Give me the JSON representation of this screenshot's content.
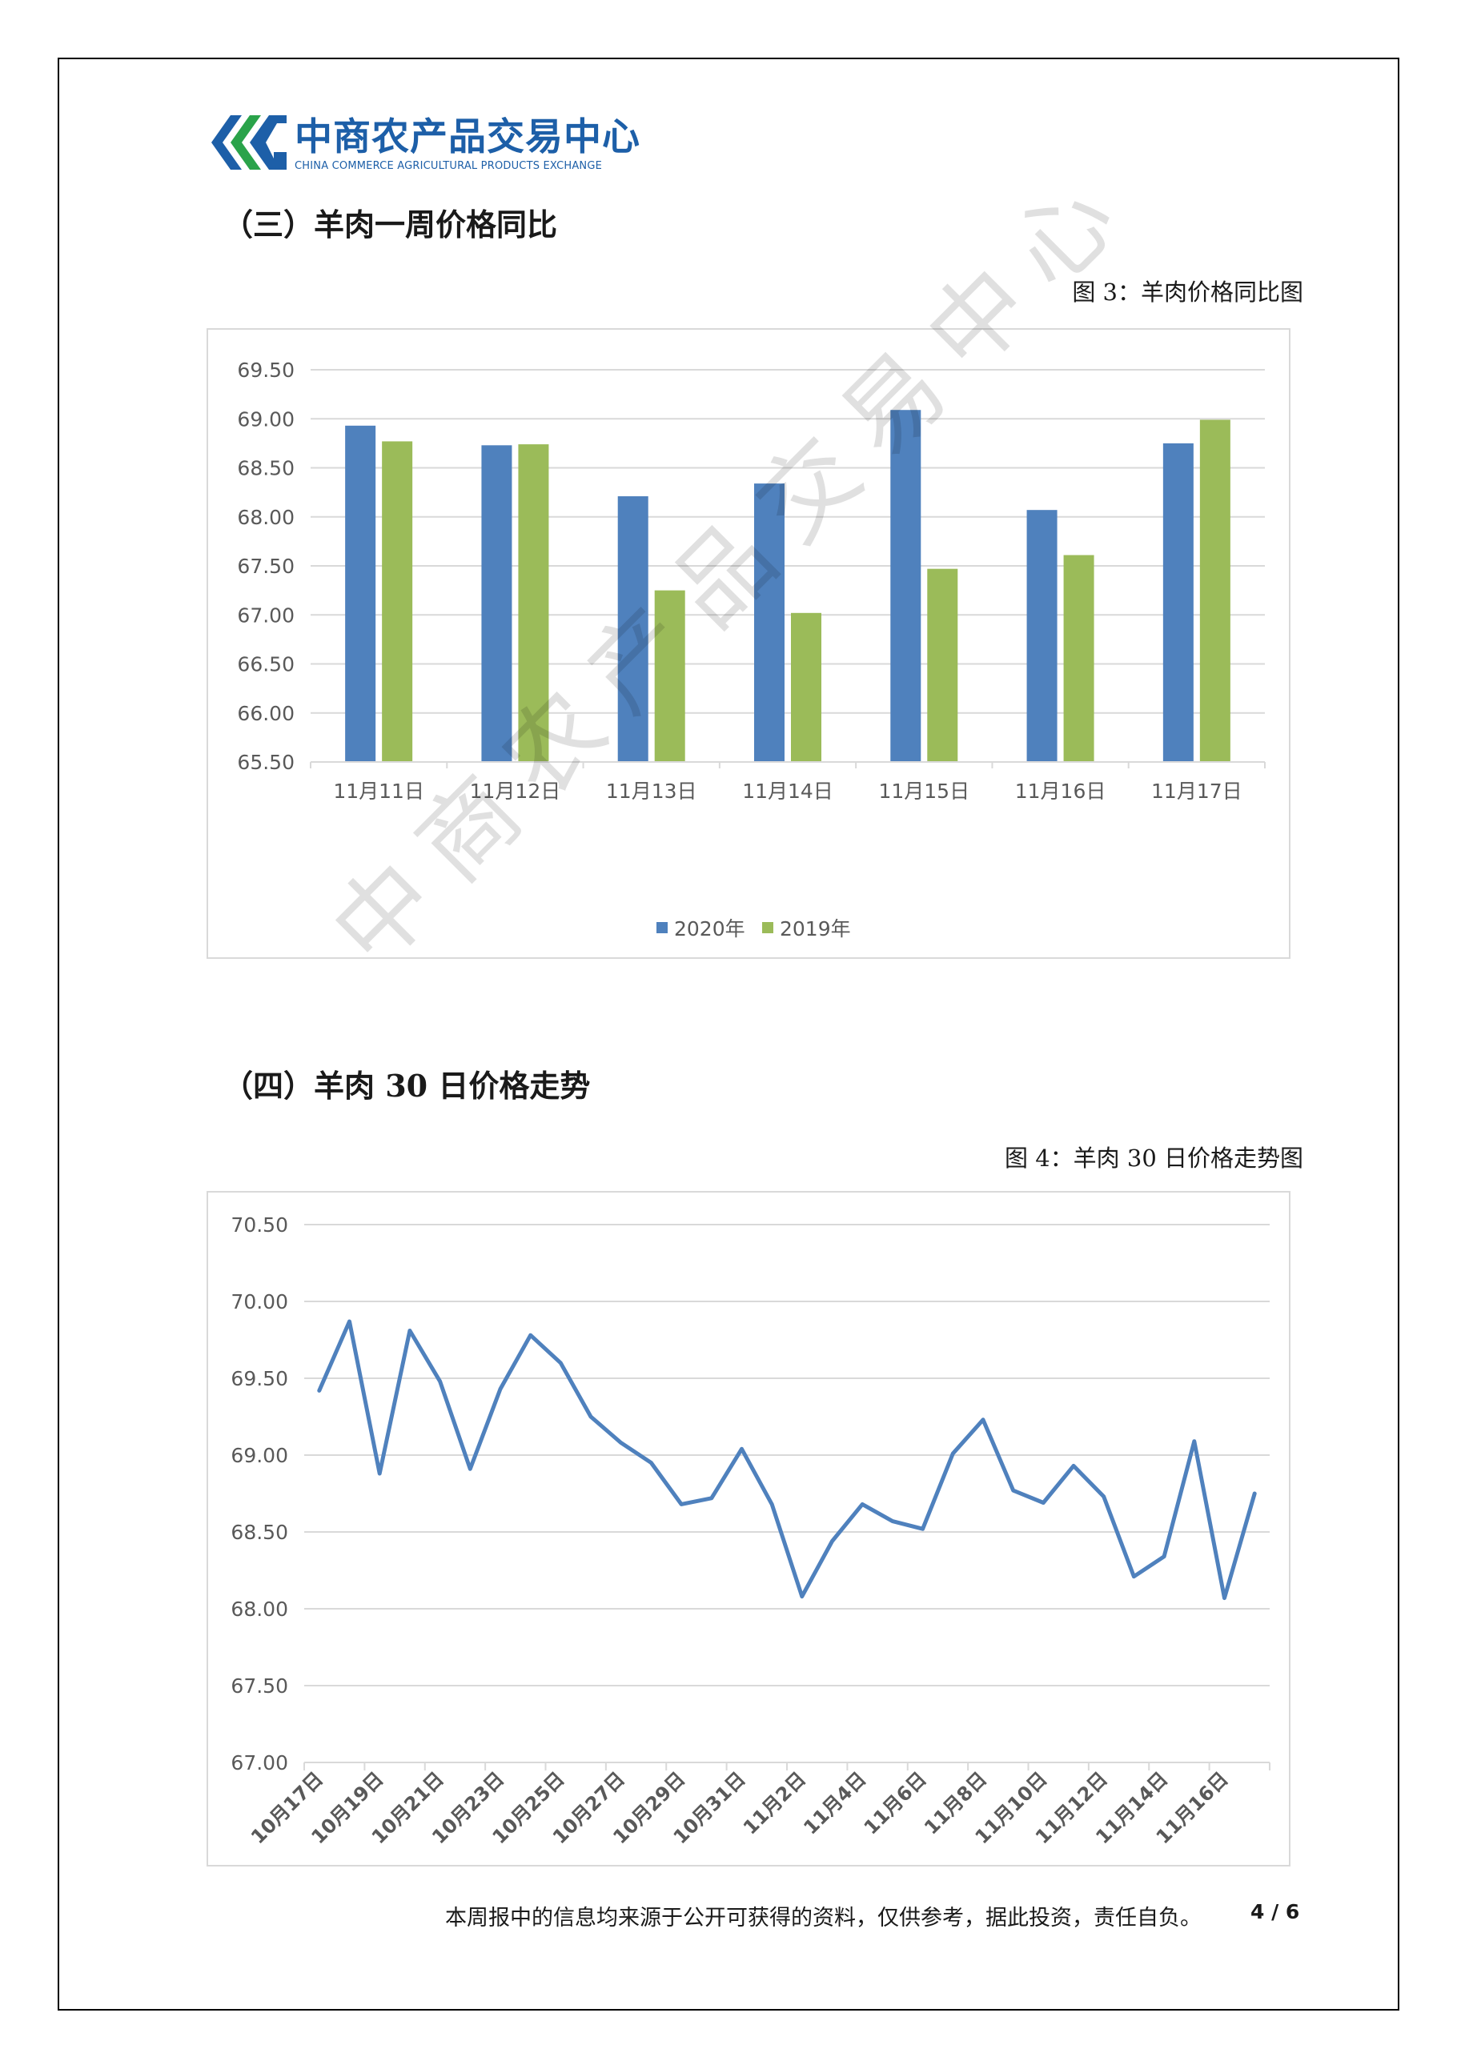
{
  "logo": {
    "cn": "中商农产品交易中心",
    "en": "CHINA COMMERCE AGRICULTURAL PRODUCTS EXCHANGE",
    "color": "#1d5fa8",
    "accent": "#2aa34a"
  },
  "section3": {
    "title": "（三）羊肉一周价格同比",
    "caption": "图 3：羊肉价格同比图"
  },
  "section4": {
    "title": "（四）羊肉 30 日价格走势",
    "caption": "图 4：羊肉 30 日价格走势图"
  },
  "watermark": "中商农产品交易中心",
  "footer": {
    "disclaimer": "本周报中的信息均来源于公开可获得的资料，仅供参考，据此投资，责任自负。",
    "page": "4 / 6"
  },
  "chart_data": [
    {
      "type": "bar",
      "categories": [
        "11月11日",
        "11月12日",
        "11月13日",
        "11月14日",
        "11月15日",
        "11月16日",
        "11月17日"
      ],
      "series": [
        {
          "name": "2020年",
          "color": "#4f81bd",
          "values": [
            68.93,
            68.73,
            68.21,
            68.34,
            69.09,
            68.07,
            68.75
          ]
        },
        {
          "name": "2019年",
          "color": "#9bbb59",
          "values": [
            68.77,
            68.74,
            67.25,
            67.02,
            67.47,
            67.61,
            68.99
          ]
        }
      ],
      "ylim": [
        65.5,
        69.5
      ],
      "yticks": [
        "65.50",
        "66.00",
        "66.50",
        "67.00",
        "67.50",
        "68.00",
        "68.50",
        "69.00",
        "69.50"
      ],
      "grid": true,
      "legend": "bottom"
    },
    {
      "type": "line",
      "x": [
        "10月17日",
        "10月18日",
        "10月19日",
        "10月20日",
        "10月21日",
        "10月22日",
        "10月23日",
        "10月24日",
        "10月25日",
        "10月26日",
        "10月27日",
        "10月28日",
        "10月29日",
        "10月30日",
        "10月31日",
        "11月1日",
        "11月2日",
        "11月3日",
        "11月4日",
        "11月5日",
        "11月6日",
        "11月7日",
        "11月8日",
        "11月9日",
        "11月10日",
        "11月11日",
        "11月12日",
        "11月13日",
        "11月14日",
        "11月15日",
        "11月16日",
        "11月17日"
      ],
      "xticks": [
        "10月17日",
        "10月19日",
        "10月21日",
        "10月23日",
        "10月25日",
        "10月27日",
        "10月29日",
        "10月31日",
        "11月2日",
        "11月4日",
        "11月6日",
        "11月8日",
        "11月10日",
        "11月12日",
        "11月14日",
        "11月16日"
      ],
      "series": [
        {
          "color": "#4f81bd",
          "values": [
            69.42,
            69.87,
            68.88,
            69.81,
            69.48,
            68.91,
            69.43,
            69.78,
            69.6,
            69.25,
            69.08,
            68.95,
            68.68,
            68.72,
            69.04,
            68.68,
            68.08,
            68.44,
            68.68,
            68.57,
            68.52,
            69.01,
            69.23,
            68.77,
            68.69,
            68.93,
            68.73,
            68.21,
            68.34,
            69.09,
            68.07,
            68.75
          ]
        }
      ],
      "ylim": [
        67.0,
        70.5
      ],
      "yticks": [
        "67.00",
        "67.50",
        "68.00",
        "68.50",
        "69.00",
        "69.50",
        "70.00",
        "70.50"
      ],
      "grid": true
    }
  ]
}
